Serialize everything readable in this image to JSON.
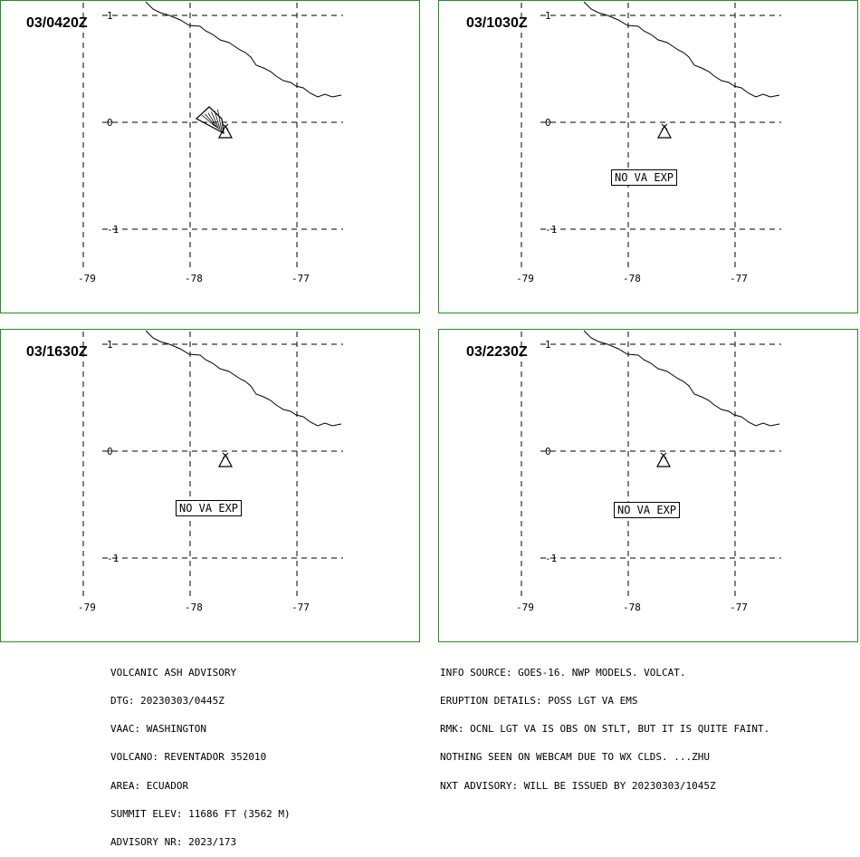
{
  "panels": [
    {
      "time": "03/0420Z",
      "no_va_exp": ""
    },
    {
      "time": "03/1030Z",
      "no_va_exp": "NO VA EXP"
    },
    {
      "time": "03/1630Z",
      "no_va_exp": "NO VA EXP"
    },
    {
      "time": "03/2230Z",
      "no_va_exp": "NO VA EXP"
    }
  ],
  "map": {
    "lon_ticks": [
      "-79",
      "-78",
      "-77"
    ],
    "lat_ticks": [
      "1",
      "0",
      "-1"
    ],
    "icons": {
      "volcano": "volcano-triangle-icon",
      "ash_cloud": "hatched-ash-polygon"
    }
  },
  "advisory_left": [
    "VOLCANIC ASH ADVISORY",
    "DTG: 20230303/0445Z",
    "VAAC: WASHINGTON",
    "VOLCANO: REVENTADOR 352010",
    "AREA: ECUADOR",
    "SUMMIT ELEV: 11686 FT (3562 M)",
    "ADVISORY NR: 2023/173"
  ],
  "advisory_right": [
    "INFO SOURCE: GOES-16. NWP MODELS. VOLCAT.",
    "ERUPTION DETAILS: POSS LGT VA EMS",
    "RMK: OCNL LGT VA IS OBS ON STLT, BUT IT IS QUITE FAINT.",
    "NOTHING SEEN ON WEBCAM DUE TO WX CLDS. ...ZHU",
    "NXT ADVISORY: WILL BE ISSUED BY 20230303/1045Z"
  ],
  "colors": {
    "panel_border": "#2a8a2a"
  }
}
